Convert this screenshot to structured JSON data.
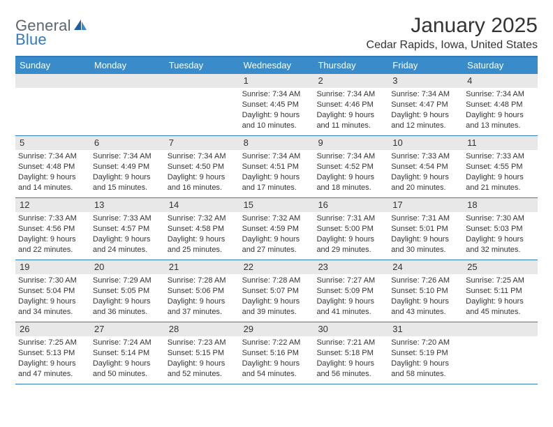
{
  "logo": {
    "text1": "General",
    "text2": "Blue"
  },
  "title": "January 2025",
  "location": "Cedar Rapids, Iowa, United States",
  "colors": {
    "header_bar": "#3a8bc9",
    "border": "#2f7bbf",
    "daynum_bg": "#e8e8e8",
    "text": "#333333",
    "logo_gray": "#5b6670",
    "logo_blue": "#2f7bbf",
    "background": "#ffffff"
  },
  "typography": {
    "title_fontsize": 30,
    "location_fontsize": 16,
    "weekday_fontsize": 13,
    "daynum_fontsize": 13,
    "body_fontsize": 11
  },
  "weekdays": [
    "Sunday",
    "Monday",
    "Tuesday",
    "Wednesday",
    "Thursday",
    "Friday",
    "Saturday"
  ],
  "weeks": [
    [
      {
        "num": "",
        "lines": []
      },
      {
        "num": "",
        "lines": []
      },
      {
        "num": "",
        "lines": []
      },
      {
        "num": "1",
        "lines": [
          "Sunrise: 7:34 AM",
          "Sunset: 4:45 PM",
          "Daylight: 9 hours",
          "and 10 minutes."
        ]
      },
      {
        "num": "2",
        "lines": [
          "Sunrise: 7:34 AM",
          "Sunset: 4:46 PM",
          "Daylight: 9 hours",
          "and 11 minutes."
        ]
      },
      {
        "num": "3",
        "lines": [
          "Sunrise: 7:34 AM",
          "Sunset: 4:47 PM",
          "Daylight: 9 hours",
          "and 12 minutes."
        ]
      },
      {
        "num": "4",
        "lines": [
          "Sunrise: 7:34 AM",
          "Sunset: 4:48 PM",
          "Daylight: 9 hours",
          "and 13 minutes."
        ]
      }
    ],
    [
      {
        "num": "5",
        "lines": [
          "Sunrise: 7:34 AM",
          "Sunset: 4:48 PM",
          "Daylight: 9 hours",
          "and 14 minutes."
        ]
      },
      {
        "num": "6",
        "lines": [
          "Sunrise: 7:34 AM",
          "Sunset: 4:49 PM",
          "Daylight: 9 hours",
          "and 15 minutes."
        ]
      },
      {
        "num": "7",
        "lines": [
          "Sunrise: 7:34 AM",
          "Sunset: 4:50 PM",
          "Daylight: 9 hours",
          "and 16 minutes."
        ]
      },
      {
        "num": "8",
        "lines": [
          "Sunrise: 7:34 AM",
          "Sunset: 4:51 PM",
          "Daylight: 9 hours",
          "and 17 minutes."
        ]
      },
      {
        "num": "9",
        "lines": [
          "Sunrise: 7:34 AM",
          "Sunset: 4:52 PM",
          "Daylight: 9 hours",
          "and 18 minutes."
        ]
      },
      {
        "num": "10",
        "lines": [
          "Sunrise: 7:33 AM",
          "Sunset: 4:54 PM",
          "Daylight: 9 hours",
          "and 20 minutes."
        ]
      },
      {
        "num": "11",
        "lines": [
          "Sunrise: 7:33 AM",
          "Sunset: 4:55 PM",
          "Daylight: 9 hours",
          "and 21 minutes."
        ]
      }
    ],
    [
      {
        "num": "12",
        "lines": [
          "Sunrise: 7:33 AM",
          "Sunset: 4:56 PM",
          "Daylight: 9 hours",
          "and 22 minutes."
        ]
      },
      {
        "num": "13",
        "lines": [
          "Sunrise: 7:33 AM",
          "Sunset: 4:57 PM",
          "Daylight: 9 hours",
          "and 24 minutes."
        ]
      },
      {
        "num": "14",
        "lines": [
          "Sunrise: 7:32 AM",
          "Sunset: 4:58 PM",
          "Daylight: 9 hours",
          "and 25 minutes."
        ]
      },
      {
        "num": "15",
        "lines": [
          "Sunrise: 7:32 AM",
          "Sunset: 4:59 PM",
          "Daylight: 9 hours",
          "and 27 minutes."
        ]
      },
      {
        "num": "16",
        "lines": [
          "Sunrise: 7:31 AM",
          "Sunset: 5:00 PM",
          "Daylight: 9 hours",
          "and 29 minutes."
        ]
      },
      {
        "num": "17",
        "lines": [
          "Sunrise: 7:31 AM",
          "Sunset: 5:01 PM",
          "Daylight: 9 hours",
          "and 30 minutes."
        ]
      },
      {
        "num": "18",
        "lines": [
          "Sunrise: 7:30 AM",
          "Sunset: 5:03 PM",
          "Daylight: 9 hours",
          "and 32 minutes."
        ]
      }
    ],
    [
      {
        "num": "19",
        "lines": [
          "Sunrise: 7:30 AM",
          "Sunset: 5:04 PM",
          "Daylight: 9 hours",
          "and 34 minutes."
        ]
      },
      {
        "num": "20",
        "lines": [
          "Sunrise: 7:29 AM",
          "Sunset: 5:05 PM",
          "Daylight: 9 hours",
          "and 36 minutes."
        ]
      },
      {
        "num": "21",
        "lines": [
          "Sunrise: 7:28 AM",
          "Sunset: 5:06 PM",
          "Daylight: 9 hours",
          "and 37 minutes."
        ]
      },
      {
        "num": "22",
        "lines": [
          "Sunrise: 7:28 AM",
          "Sunset: 5:07 PM",
          "Daylight: 9 hours",
          "and 39 minutes."
        ]
      },
      {
        "num": "23",
        "lines": [
          "Sunrise: 7:27 AM",
          "Sunset: 5:09 PM",
          "Daylight: 9 hours",
          "and 41 minutes."
        ]
      },
      {
        "num": "24",
        "lines": [
          "Sunrise: 7:26 AM",
          "Sunset: 5:10 PM",
          "Daylight: 9 hours",
          "and 43 minutes."
        ]
      },
      {
        "num": "25",
        "lines": [
          "Sunrise: 7:25 AM",
          "Sunset: 5:11 PM",
          "Daylight: 9 hours",
          "and 45 minutes."
        ]
      }
    ],
    [
      {
        "num": "26",
        "lines": [
          "Sunrise: 7:25 AM",
          "Sunset: 5:13 PM",
          "Daylight: 9 hours",
          "and 47 minutes."
        ]
      },
      {
        "num": "27",
        "lines": [
          "Sunrise: 7:24 AM",
          "Sunset: 5:14 PM",
          "Daylight: 9 hours",
          "and 50 minutes."
        ]
      },
      {
        "num": "28",
        "lines": [
          "Sunrise: 7:23 AM",
          "Sunset: 5:15 PM",
          "Daylight: 9 hours",
          "and 52 minutes."
        ]
      },
      {
        "num": "29",
        "lines": [
          "Sunrise: 7:22 AM",
          "Sunset: 5:16 PM",
          "Daylight: 9 hours",
          "and 54 minutes."
        ]
      },
      {
        "num": "30",
        "lines": [
          "Sunrise: 7:21 AM",
          "Sunset: 5:18 PM",
          "Daylight: 9 hours",
          "and 56 minutes."
        ]
      },
      {
        "num": "31",
        "lines": [
          "Sunrise: 7:20 AM",
          "Sunset: 5:19 PM",
          "Daylight: 9 hours",
          "and 58 minutes."
        ]
      },
      {
        "num": "",
        "lines": []
      }
    ]
  ]
}
